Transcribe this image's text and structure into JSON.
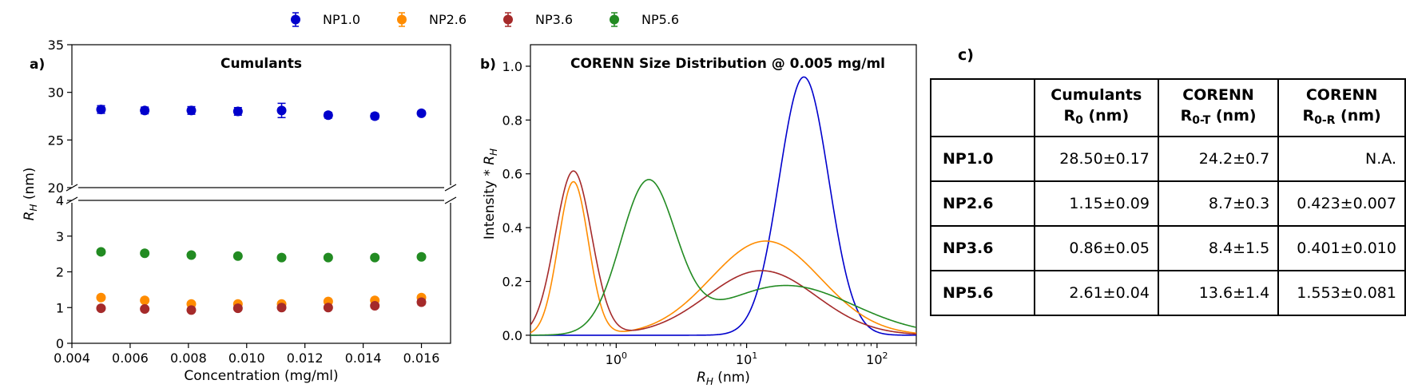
{
  "legend": {
    "placement": "top-center",
    "entries": [
      {
        "name": "NP1.0",
        "color": "#0000cc"
      },
      {
        "name": "NP2.6",
        "color": "#ff8c00"
      },
      {
        "name": "NP3.6",
        "color": "#a52a2a"
      },
      {
        "name": "NP5.6",
        "color": "#228b22"
      }
    ]
  },
  "chart_data": [
    {
      "panel": "a)",
      "type": "scatter",
      "title": "Cumulants",
      "xlabel": "Concentration (mg/ml)",
      "ylabel": "R",
      "ylabel_sub": "H",
      "ylabel_unit": " (nm)",
      "xlim": [
        0.004,
        0.017
      ],
      "xticks": [
        0.004,
        0.006,
        0.008,
        0.01,
        0.012,
        0.014,
        0.016
      ],
      "xtick_labels": [
        "0.004",
        "0.006",
        "0.008",
        "0.010",
        "0.012",
        "0.014",
        "0.016"
      ],
      "broken_axis": {
        "upper_ylim": [
          20,
          35
        ],
        "upper_yticks": [
          20,
          25,
          30,
          35
        ],
        "lower_ylim": [
          0,
          4
        ],
        "lower_yticks": [
          0,
          1,
          2,
          3,
          4
        ]
      },
      "x": [
        0.005,
        0.0065,
        0.0081,
        0.0097,
        0.0112,
        0.0128,
        0.0144,
        0.016
      ],
      "series": [
        {
          "name": "NP1.0",
          "values": [
            28.2,
            28.1,
            28.1,
            28.0,
            28.1,
            27.6,
            27.5,
            27.8
          ],
          "errors": [
            0.4,
            0.35,
            0.4,
            0.4,
            0.75,
            0.3,
            0.3,
            0.25
          ]
        },
        {
          "name": "NP2.6",
          "values": [
            1.28,
            1.2,
            1.1,
            1.1,
            1.1,
            1.17,
            1.2,
            1.28
          ],
          "errors": [
            0.05,
            0.05,
            0.05,
            0.05,
            0.05,
            0.05,
            0.05,
            0.05
          ]
        },
        {
          "name": "NP3.6",
          "values": [
            0.98,
            0.96,
            0.93,
            0.98,
            1.0,
            1.0,
            1.05,
            1.15
          ],
          "errors": [
            0.05,
            0.05,
            0.05,
            0.05,
            0.05,
            0.05,
            0.05,
            0.07
          ]
        },
        {
          "name": "NP5.6",
          "values": [
            2.56,
            2.52,
            2.47,
            2.44,
            2.4,
            2.4,
            2.4,
            2.42
          ],
          "errors": [
            0.06,
            0.06,
            0.06,
            0.06,
            0.06,
            0.06,
            0.06,
            0.06
          ]
        }
      ]
    },
    {
      "panel": "b)",
      "type": "line",
      "title": "CORENN Size Distribution @ 0.005 mg/ml",
      "xlabel": "R",
      "xlabel_sub": "H",
      "xlabel_unit": " (nm)",
      "ylabel": "Intensity * R",
      "ylabel_sub": "H",
      "xscale": "log",
      "xlim": [
        0.22,
        200
      ],
      "ylim": [
        -0.03,
        1.08
      ],
      "xticks": [
        1,
        10,
        100
      ],
      "xtick_base": "10",
      "xtick_exps": [
        "0",
        "1",
        "2"
      ],
      "yticks": [
        0.0,
        0.2,
        0.4,
        0.6,
        0.8,
        1.0
      ],
      "ytick_labels": [
        "0.0",
        "0.2",
        "0.4",
        "0.6",
        "0.8",
        "1.0"
      ],
      "series": [
        {
          "name": "NP1.0",
          "peaks": [
            {
              "center": 27.5,
              "amplitude": 0.96,
              "width": 0.19
            }
          ]
        },
        {
          "name": "NP2.6",
          "peaks": [
            {
              "center": 0.47,
              "amplitude": 0.57,
              "width": 0.115
            },
            {
              "center": 14.0,
              "amplitude": 0.35,
              "width": 0.42
            }
          ]
        },
        {
          "name": "NP3.6",
          "peaks": [
            {
              "center": 0.47,
              "amplitude": 0.61,
              "width": 0.14
            },
            {
              "center": 13.0,
              "amplitude": 0.24,
              "width": 0.42
            }
          ]
        },
        {
          "name": "NP5.6",
          "peaks": [
            {
              "center": 1.75,
              "amplitude": 0.555,
              "width": 0.21
            },
            {
              "center": 20.0,
              "amplitude": 0.185,
              "width": 0.52
            }
          ]
        }
      ]
    }
  ],
  "table": {
    "panel": "c)",
    "headers": [
      {
        "line1": "",
        "main": "",
        "sub": "",
        "unit": ""
      },
      {
        "line1": "Cumulants",
        "main": "R",
        "sub": "0",
        "unit": " (nm)"
      },
      {
        "line1": "CORENN",
        "main": "R",
        "sub": "0-T",
        "unit": " (nm)"
      },
      {
        "line1": "CORENN",
        "main": "R",
        "sub": "0-R",
        "unit": " (nm)"
      }
    ],
    "rows": [
      {
        "label": "NP1.0",
        "cells": [
          "28.50±0.17",
          "24.2±0.7",
          "N.A."
        ]
      },
      {
        "label": "NP2.6",
        "cells": [
          "1.15±0.09",
          "8.7±0.3",
          "0.423±0.007"
        ]
      },
      {
        "label": "NP3.6",
        "cells": [
          "0.86±0.05",
          "8.4±1.5",
          "0.401±0.010"
        ]
      },
      {
        "label": "NP5.6",
        "cells": [
          "2.61±0.04",
          "13.6±1.4",
          "1.553±0.081"
        ]
      }
    ]
  }
}
